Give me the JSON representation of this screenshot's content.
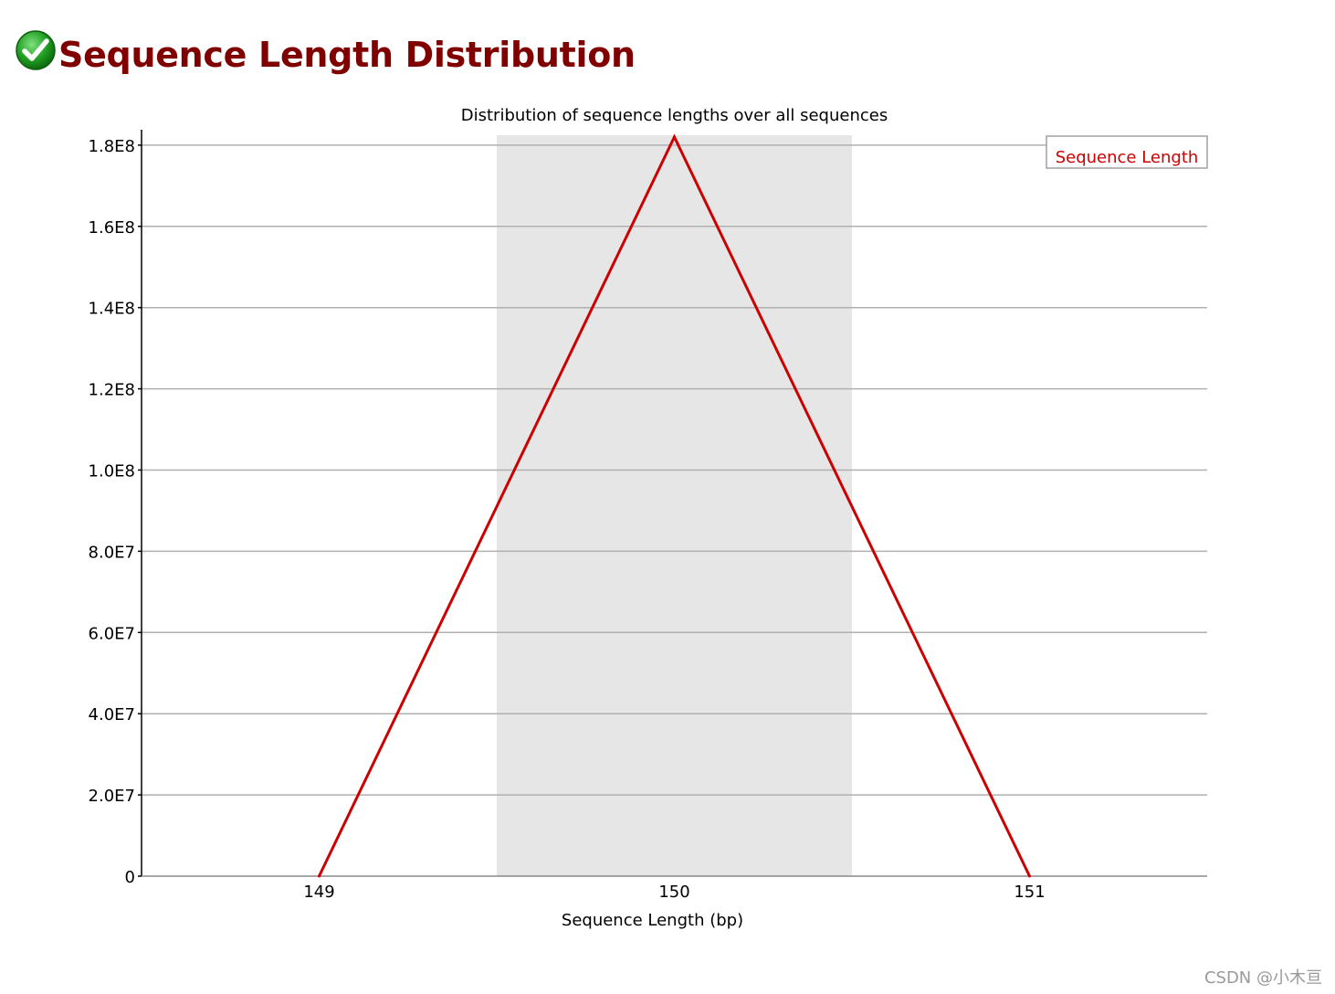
{
  "header": {
    "title": "Sequence Length Distribution",
    "status_icon": "pass-check-icon"
  },
  "colors": {
    "title": "#800000",
    "series_line": "#cc0000",
    "highlight_band": "#e6e6e6",
    "gridline": "#b0b0b0",
    "axis": "#000000",
    "pass_icon": "#1e9e1e"
  },
  "chart_data": {
    "type": "line",
    "title": "Distribution of sequence lengths over all sequences",
    "xlabel": "Sequence Length (bp)",
    "ylabel": "",
    "x": [
      149,
      150,
      151
    ],
    "x_tick_labels": [
      "149",
      "150",
      "151"
    ],
    "xlim": [
      148.5,
      151.5
    ],
    "ylim": [
      0,
      182000000
    ],
    "y_ticks": [
      0,
      20000000,
      40000000,
      60000000,
      80000000,
      100000000,
      120000000,
      140000000,
      160000000,
      180000000
    ],
    "y_tick_labels": [
      "0",
      "2.0E7",
      "4.0E7",
      "6.0E7",
      "8.0E7",
      "1.0E8",
      "1.2E8",
      "1.4E8",
      "1.6E8",
      "1.8E8"
    ],
    "highlight_band": [
      149.5,
      150.5
    ],
    "grid": true,
    "legend_position": "top-right",
    "series": [
      {
        "name": "Sequence Length",
        "values": [
          0,
          182000000,
          0
        ]
      }
    ]
  },
  "watermark": "CSDN @小木亘"
}
